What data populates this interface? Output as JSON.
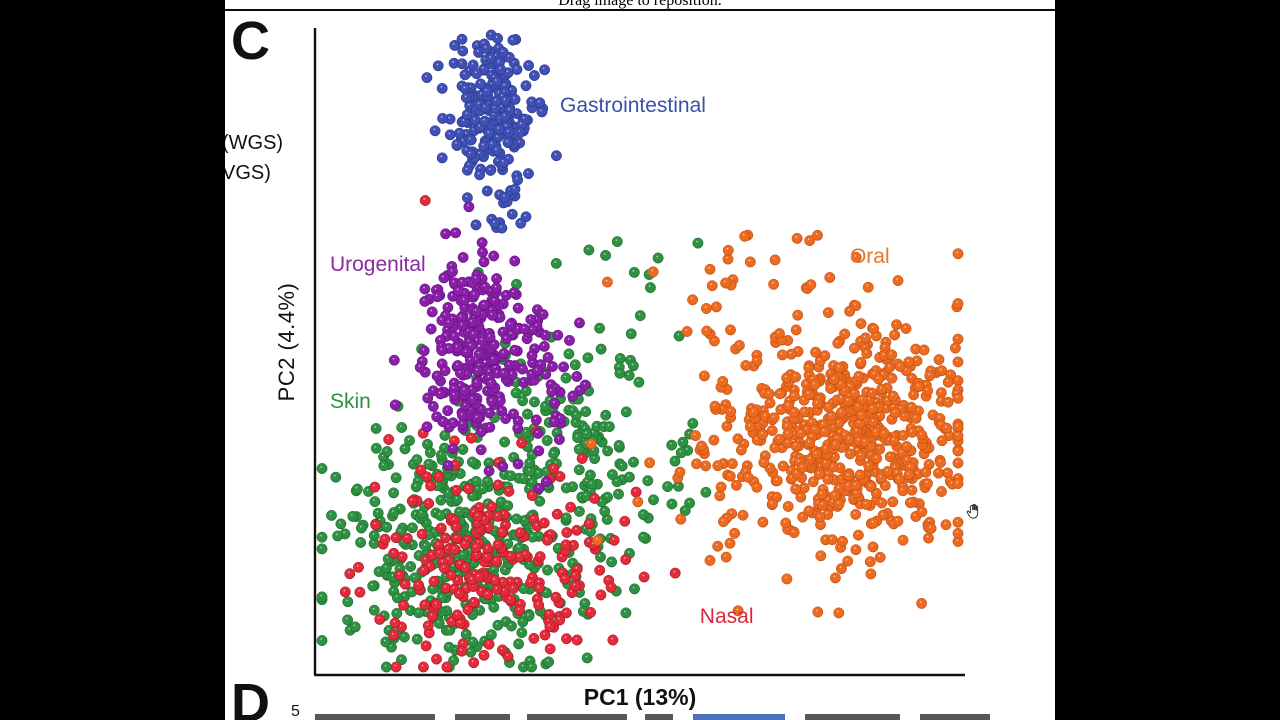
{
  "viewer": {
    "drag_hint": "Drag image to reposition."
  },
  "figure": {
    "panel_c": "C",
    "panel_d": "D",
    "panel_d_tick": "5",
    "cropped_left_text": [
      "(WGS)",
      "VGS)"
    ]
  },
  "chart_data": {
    "type": "scatter",
    "title": "",
    "xlabel": "PC1 (13%)",
    "ylabel": "PC2 (4.4%)",
    "axes": {
      "left_axis": true,
      "bottom_axis": true,
      "ticks": "none",
      "grid": false
    },
    "point_style": {
      "radius_px": 5.2,
      "highlight": "white-speckle"
    },
    "draw_order": [
      3,
      4,
      2,
      1,
      0
    ],
    "groups": [
      {
        "name": "Gastrointestinal",
        "color": "#4050b4",
        "edge": "#293a8e",
        "label": {
          "text": "Gastrointestinal",
          "color": "#3a51a8",
          "x": 0.377,
          "y": 0.102
        },
        "blobs": [
          {
            "cx": 0.269,
            "cy": 0.13,
            "sx": 0.031,
            "sy": 0.056,
            "n": 220
          },
          {
            "cx": 0.28,
            "cy": 0.274,
            "sx": 0.022,
            "sy": 0.031,
            "n": 18
          }
        ]
      },
      {
        "name": "Urogenital",
        "color": "#8a1fa8",
        "edge": "#621380",
        "label": {
          "text": "Urogenital",
          "color": "#8a2aa0",
          "x": 0.023,
          "y": 0.348
        },
        "blobs": [
          {
            "cx": 0.251,
            "cy": 0.494,
            "sx": 0.042,
            "sy": 0.074,
            "n": 260
          },
          {
            "cx": 0.358,
            "cy": 0.552,
            "sx": 0.028,
            "sy": 0.062,
            "n": 40
          }
        ]
      },
      {
        "name": "Oral",
        "color": "#ed6b21",
        "edge": "#bf4f10",
        "label": {
          "text": "Oral",
          "color": "#e4762d",
          "x": 0.823,
          "y": 0.335
        },
        "blobs": [
          {
            "cx": 0.826,
            "cy": 0.625,
            "sx": 0.089,
            "sy": 0.08,
            "n": 520
          },
          {
            "cx": 0.762,
            "cy": 0.606,
            "sx": 0.146,
            "sy": 0.124,
            "n": 150
          },
          {
            "cx": 0.685,
            "cy": 0.39,
            "sx": 0.069,
            "sy": 0.046,
            "n": 14
          }
        ]
      },
      {
        "name": "Skin",
        "color": "#2f9242",
        "edge": "#1c6b2c",
        "label": {
          "text": "Skin",
          "color": "#2e8f3e",
          "x": 0.023,
          "y": 0.56
        },
        "blobs": [
          {
            "cx": 0.226,
            "cy": 0.799,
            "sx": 0.095,
            "sy": 0.09,
            "n": 400
          },
          {
            "cx": 0.354,
            "cy": 0.621,
            "sx": 0.085,
            "sy": 0.1,
            "n": 120
          },
          {
            "cx": 0.485,
            "cy": 0.668,
            "sx": 0.054,
            "sy": 0.108,
            "n": 45
          },
          {
            "cx": 0.515,
            "cy": 0.42,
            "sx": 0.062,
            "sy": 0.054,
            "n": 8
          }
        ]
      },
      {
        "name": "Nasal",
        "color": "#e22c3c",
        "edge": "#a81624",
        "label": {
          "text": "Nasal",
          "color": "#d6293a",
          "x": 0.592,
          "y": 0.892
        },
        "blobs": [
          {
            "cx": 0.251,
            "cy": 0.815,
            "sx": 0.085,
            "sy": 0.074,
            "n": 210
          },
          {
            "cx": 0.423,
            "cy": 0.822,
            "sx": 0.062,
            "sy": 0.07,
            "n": 25
          },
          {
            "cx": 0.168,
            "cy": 0.277,
            "sx": 0.004,
            "sy": 0.004,
            "n": 1
          }
        ]
      }
    ]
  }
}
